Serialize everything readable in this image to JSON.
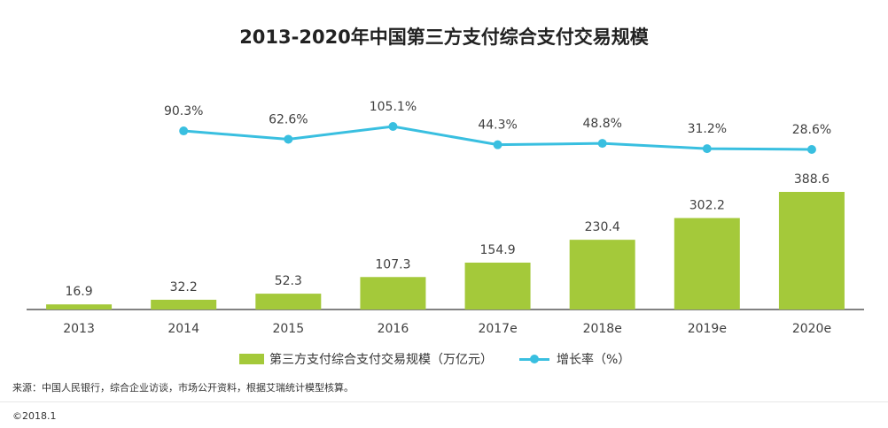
{
  "colors": {
    "bar": "#a4c93a",
    "line": "#39bfe0",
    "axis": "#595959",
    "text": "#404040"
  },
  "chart_data": {
    "title": "2013-2020年中国第三方支付综合支付交易规模",
    "categories": [
      "2013",
      "2014",
      "2015",
      "2016",
      "2017e",
      "2018e",
      "2019e",
      "2020e"
    ],
    "series": [
      {
        "name": "第三方支付综合支付交易规模（万亿元）",
        "type": "bar",
        "values": [
          16.9,
          32.2,
          52.3,
          107.3,
          154.9,
          230.4,
          302.2,
          388.6
        ],
        "labels": [
          "16.9",
          "32.2",
          "52.3",
          "107.3",
          "154.9",
          "230.4",
          "302.2",
          "388.6"
        ]
      },
      {
        "name": "增长率（%）",
        "type": "line",
        "values": [
          null,
          90.3,
          62.6,
          105.1,
          44.3,
          48.8,
          31.2,
          28.6
        ],
        "labels": [
          null,
          "90.3%",
          "62.6%",
          "105.1%",
          "44.3%",
          "48.8%",
          "31.2%",
          "28.6%"
        ]
      }
    ]
  },
  "legend": {
    "bar_label": "第三方支付综合支付交易规模（万亿元）",
    "line_label": "增长率（%）"
  },
  "source": "来源：中国人民银行，综合企业访谈，市场公开资料，根据艾瑞统计模型核算。",
  "copyright": "©2018.1"
}
